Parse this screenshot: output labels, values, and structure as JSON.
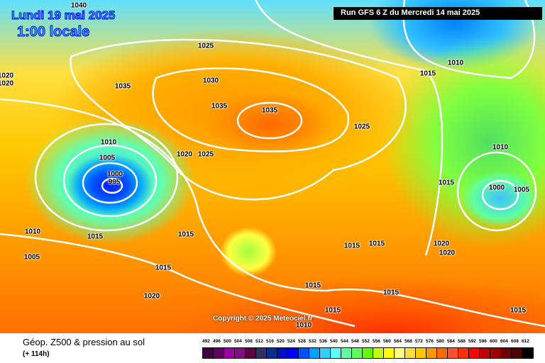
{
  "header": {
    "valid_date": "Lundi 19 mai 2025",
    "local_time": "1:00 locale",
    "run_info": "Run GFS 6 Z du Mercredi 14 mai 2025"
  },
  "copyright": "Copyright © 2025 Meteociel.fr",
  "footer": {
    "title": "Géop. Z500 & pression au sol",
    "forecast_offset": "(+ 114h)"
  },
  "legend": {
    "ticks": [
      "492",
      "496",
      "500",
      "504",
      "508",
      "512",
      "516",
      "520",
      "524",
      "528",
      "532",
      "536",
      "540",
      "544",
      "548",
      "552",
      "556",
      "560",
      "564",
      "568",
      "572",
      "576",
      "580",
      "584",
      "588",
      "592",
      "596",
      "600",
      "604",
      "608",
      "612"
    ],
    "colors": [
      "#400040",
      "#600060",
      "#a000a0",
      "#801080",
      "#600040",
      "#303060",
      "#003090",
      "#0010c0",
      "#0000ff",
      "#0050ff",
      "#00a0ff",
      "#30d0ff",
      "#60ffff",
      "#60ffa0",
      "#60ff60",
      "#60ff00",
      "#c0ff10",
      "#ffff00",
      "#ffff80",
      "#ffe040",
      "#ffc800",
      "#ff9800",
      "#ff6a00",
      "#ff5030",
      "#ff3000",
      "#ff0000",
      "#c00000",
      "#a00000",
      "#700000",
      "#500000",
      "#000000"
    ]
  },
  "isobar_labels": [
    "1040",
    "1025",
    "1035",
    "1030",
    "1035",
    "1035",
    "1015",
    "1010",
    "1025",
    "1010",
    "1005",
    "1000",
    "995",
    "1020",
    "1025",
    "1010",
    "1000",
    "1005",
    "1015",
    "1010",
    "1015",
    "1015",
    "1015",
    "1015",
    "1020",
    "1020",
    "1015",
    "1005",
    "1015",
    "1020",
    "1015",
    "1015",
    "1010",
    "1015",
    "1020",
    "1020"
  ]
}
